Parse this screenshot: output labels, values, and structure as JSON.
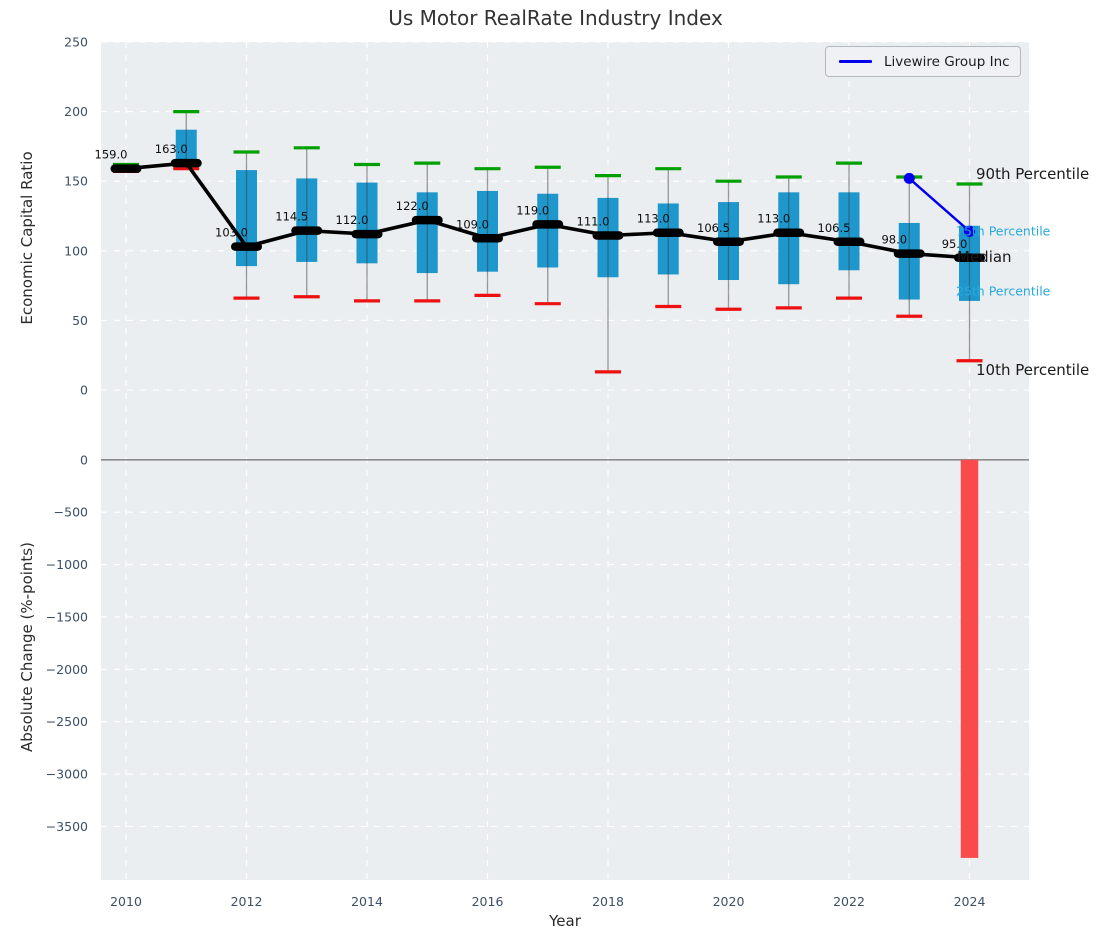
{
  "title": "Us Motor RealRate Industry Index",
  "legend": {
    "label": "Livewire Group Inc",
    "line_color": "#0000ee"
  },
  "annotations": {
    "p90": "90th Percentile",
    "p75": "75th Percentile",
    "median": "Median",
    "p25": "25th Percentile",
    "p10": "10th Percentile",
    "black_label_color": "#1a1a1a",
    "cyan_label_color": "#29a9de"
  },
  "colors": {
    "panel_background": "#ebeef0",
    "gridline": "#ffffff",
    "box_fill": "#1e97cc",
    "p90_cap": "#00a000",
    "p10_cap": "#ee1010",
    "median": "#000000",
    "overlay_line": "#0000ee",
    "change_bar": "#f94b4b",
    "tick_text": "#3d4f65",
    "zero_line": "#8b8b8b"
  },
  "chart_data": [
    {
      "type": "boxplot",
      "title": "Us Motor RealRate Industry Index",
      "ylabel": "Economic Capital Ratio",
      "xlabel": "Year",
      "ylim": [
        -20,
        250
      ],
      "yticks": [
        0,
        50,
        100,
        150,
        200,
        250
      ],
      "ytick_labels": [
        "0",
        "50",
        "100",
        "150",
        "200",
        "250"
      ],
      "xticks": [
        2010,
        2012,
        2014,
        2016,
        2018,
        2020,
        2022,
        2024
      ],
      "xtick_labels": [
        "2010",
        "2012",
        "2014",
        "2016",
        "2018",
        "2020",
        "2022",
        "2024"
      ],
      "grid": "white dashed",
      "legend_position": "upper right",
      "categories": [
        2010,
        2011,
        2012,
        2013,
        2014,
        2015,
        2016,
        2017,
        2018,
        2019,
        2020,
        2021,
        2022,
        2023,
        2024
      ],
      "series": [
        {
          "name": "90th Percentile",
          "values": [
            162,
            200,
            171,
            174,
            162,
            163,
            159,
            160,
            154,
            159,
            150,
            153,
            163,
            153,
            148
          ]
        },
        {
          "name": "75th Percentile",
          "values": [
            161,
            187,
            158,
            152,
            149,
            142,
            143,
            141,
            138,
            134,
            135,
            142,
            142,
            120,
            118
          ]
        },
        {
          "name": "Median",
          "values": [
            159,
            163,
            103,
            114.5,
            112,
            122,
            109,
            119,
            111,
            113,
            106.5,
            113,
            106.5,
            98,
            95
          ]
        },
        {
          "name": "25th Percentile",
          "values": [
            158,
            161,
            89,
            92,
            91,
            84,
            85,
            88,
            81,
            83,
            79,
            76,
            86,
            65,
            64
          ]
        },
        {
          "name": "10th Percentile",
          "values": [
            157,
            159,
            66,
            67,
            64,
            64,
            68,
            62,
            13,
            60,
            58,
            59,
            66,
            53,
            21
          ]
        }
      ],
      "median_labels": [
        "159.0",
        "163.0",
        "103.0",
        "114.5",
        "112.0",
        "122.0",
        "109.0",
        "119.0",
        "111.0",
        "113.0",
        "106.5",
        "113.0",
        "106.5",
        "98.0",
        "95.0"
      ],
      "overlay_line": {
        "name": "Livewire Group Inc",
        "x": [
          2023,
          2024
        ],
        "y": [
          152,
          114
        ],
        "color": "#0000ee"
      }
    },
    {
      "type": "bar",
      "ylabel": "Absolute Change (%-points)",
      "xlabel": "Year",
      "ylim": [
        400,
        -4020
      ],
      "yticks": [
        0,
        -500,
        -1000,
        -1500,
        -2000,
        -2500,
        -3000,
        -3500
      ],
      "ytick_labels": [
        "0",
        "−500",
        "−1000",
        "−1500",
        "−2000",
        "−2500",
        "−3000",
        "−3500"
      ],
      "xticks": [
        2010,
        2012,
        2014,
        2016,
        2018,
        2020,
        2022,
        2024
      ],
      "grid": "white dashed",
      "categories": [
        2024
      ],
      "values": [
        -3800
      ],
      "bar_color": "#f94b4b"
    }
  ]
}
